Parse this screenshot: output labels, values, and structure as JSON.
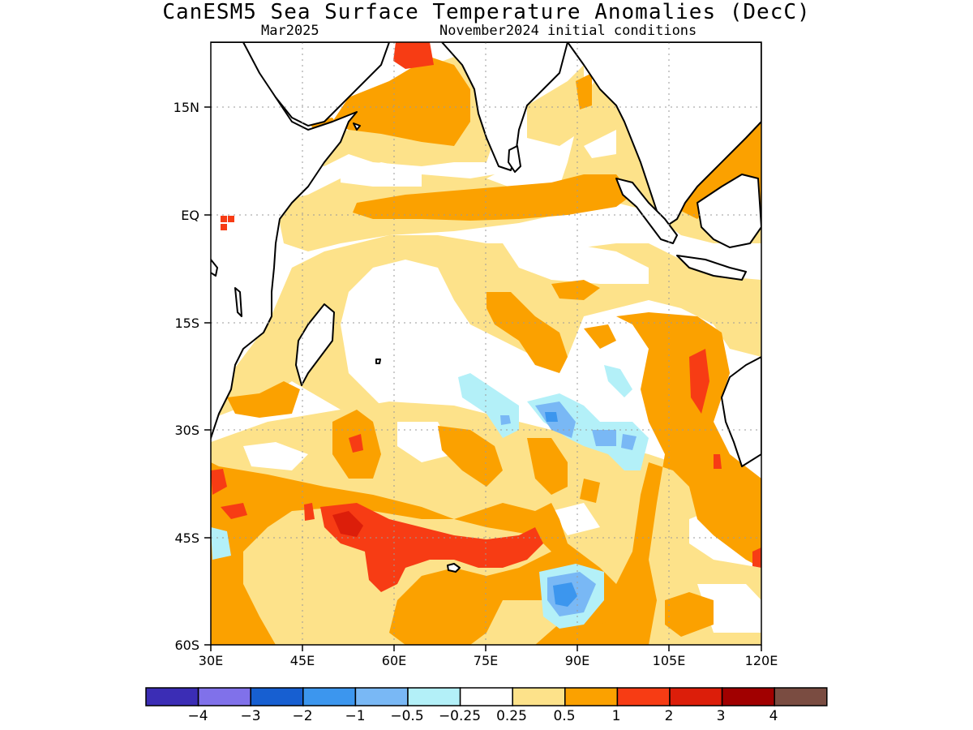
{
  "title": "CanESM5 Sea Surface Temperature Anomalies (DecC)",
  "subtitle_left": "Mar2025",
  "subtitle_right": "November2024 initial conditions",
  "map": {
    "lon_range": [
      30,
      120
    ],
    "lat_range": [
      -60,
      24
    ],
    "x_ticks": [
      "30E",
      "45E",
      "60E",
      "75E",
      "90E",
      "105E",
      "120E"
    ],
    "y_ticks": [
      "15N",
      "EQ",
      "15S",
      "30S",
      "45S",
      "60S"
    ],
    "colors": {
      "lt_neg0_25": "#b3f0f8",
      "neg0_25_neg0_5": "#79b8f5",
      "neg0_5_neg1": "#3c96ee",
      "pos0_25_0_5": "#fde28a",
      "pos0_5_1": "#fba100",
      "pos1_2": "#f73c14",
      "pos2_3": "#dc1e0a",
      "coast": "#000000",
      "grid": "#9a9a9a"
    }
  },
  "colorbar": {
    "colors": [
      "#3b2db5",
      "#8071ea",
      "#175fd1",
      "#3c96ee",
      "#79b8f5",
      "#b3f0f8",
      "#ffffff",
      "#fde28a",
      "#fba100",
      "#f73c14",
      "#dc1e0a",
      "#a10000",
      "#7a4c41"
    ],
    "labels": [
      "−4",
      "−3",
      "−2",
      "−1",
      "−0.5",
      "−0.25",
      "0.25",
      "0.5",
      "1",
      "2",
      "3",
      "4"
    ]
  }
}
